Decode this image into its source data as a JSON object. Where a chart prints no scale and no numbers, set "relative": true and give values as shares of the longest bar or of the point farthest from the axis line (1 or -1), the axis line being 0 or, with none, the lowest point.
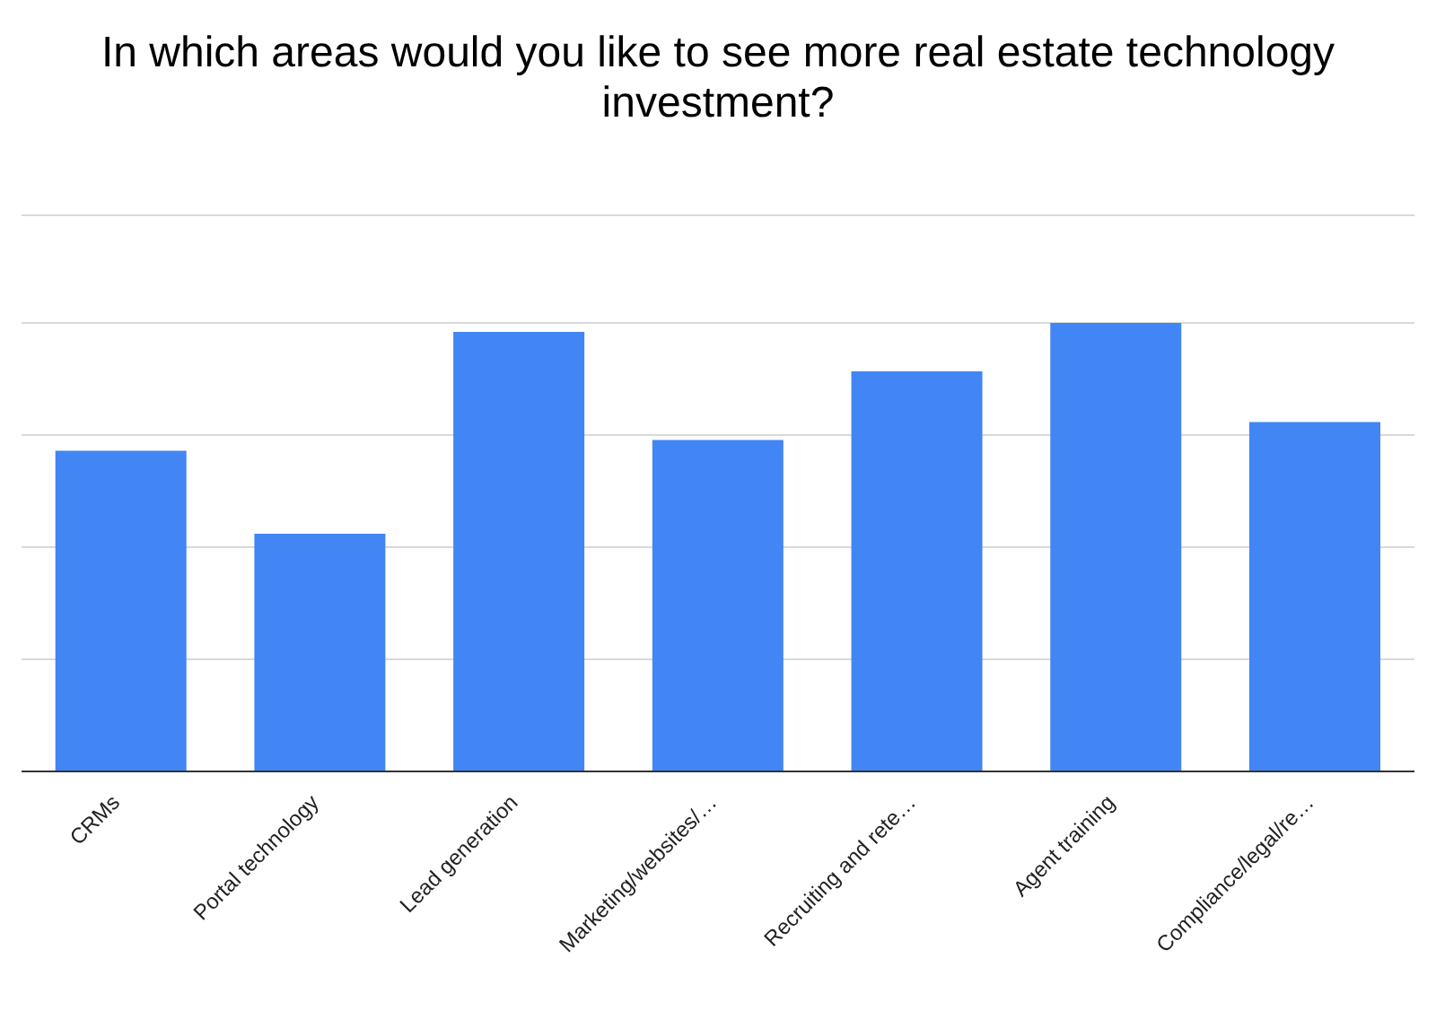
{
  "chart_data": {
    "type": "bar",
    "title": "In which areas would you like to see more real estate technology investment?",
    "categories": [
      "CRMs",
      "Portal technology",
      "Lead generation",
      "Marketing/websites/…",
      "Recruiting and rete…",
      "Agent training",
      "Compliance/legal/re…"
    ],
    "values": [
      0.715,
      0.53,
      0.98,
      0.739,
      0.892,
      1,
      0.779
    ],
    "color": "#4285f4",
    "relative": true,
    "grid": "y"
  }
}
